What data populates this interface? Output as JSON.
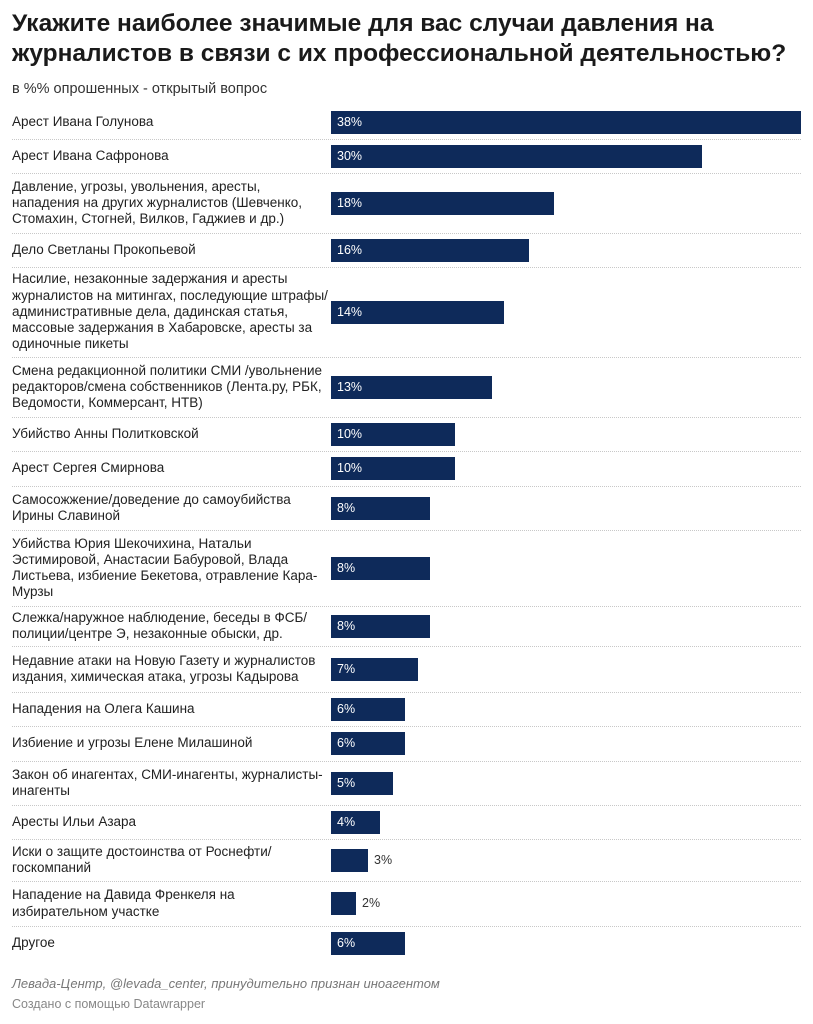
{
  "header": {
    "title": "Укажите наиболее значимые для вас случаи давления на журналистов в связи с их профессиональной деятельностью?",
    "subtitle": "в %% опрошенных - открытый вопрос"
  },
  "footer": {
    "source": "Левада-Центр, @levada_center, принудительно признан иноагентом",
    "credit": "Создано с помощью Datawrapper"
  },
  "chart_data": {
    "type": "bar",
    "orientation": "horizontal",
    "bar_color": "#0e2a5a",
    "xlim": [
      0,
      38
    ],
    "grid": false,
    "legend": "none",
    "title": "Укажите наиболее значимые для вас случаи давления на журналистов в связи с их профессиональной деятельностью?",
    "subtitle": "в %% опрошенных - открытый вопрос",
    "categories": [
      "Арест Ивана Голунова",
      "Арест Ивана Сафронова",
      "Давление, угрозы, увольнения, аресты, нападения на других журналистов (Шевченко, Стомахин, Стогней, Вилков, Гаджиев и др.)",
      "Дело Светланы Прокопьевой",
      "Насилие, незаконные задержания и аресты журналистов на митингах, последующие штрафы/административные дела, дадинская статья, массовые задержания в Хабаровске, аресты за одиночные пикеты",
      "Смена редакционной политики СМИ /увольнение редакторов/смена собственников (Лента.ру, РБК, Ведомости, Коммерсант, НТВ)",
      "Убийство Анны Политковской",
      "Арест Сергея Смирнова",
      "Самосожжение/доведение до самоубийства Ирины Славиной",
      "Убийства Юрия Шекочихина, Натальи Эстимировой, Анастасии Бабуровой, Влада Листьева, избиение Бекетова, отравление Кара-Мурзы",
      "Слежка/наружное наблюдение, беседы в ФСБ/полиции/центре Э, незаконные обыски, др.",
      "Недавние атаки на Новую Газету и журналистов издания, химическая атака, угрозы Кадырова",
      "Нападения на Олега Кашина",
      "Избиение и угрозы Елене Милашиной",
      "Закон об инагентах, СМИ-инагенты, журналисты-инагенты",
      "Аресты Ильи Азара",
      "Иски о защите достоинства от Роснефти/госкомпаний",
      "Нападение на Давида Френкеля на избирательном участке",
      "Другое"
    ],
    "values": [
      38,
      30,
      18,
      16,
      14,
      13,
      10,
      10,
      8,
      8,
      8,
      7,
      6,
      6,
      5,
      4,
      3,
      2,
      6
    ],
    "value_labels": [
      "38%",
      "30%",
      "18%",
      "16%",
      "14%",
      "13%",
      "10%",
      "10%",
      "8%",
      "8%",
      "8%",
      "7%",
      "6%",
      "6%",
      "5%",
      "4%",
      "3%",
      "2%",
      "6%"
    ]
  }
}
